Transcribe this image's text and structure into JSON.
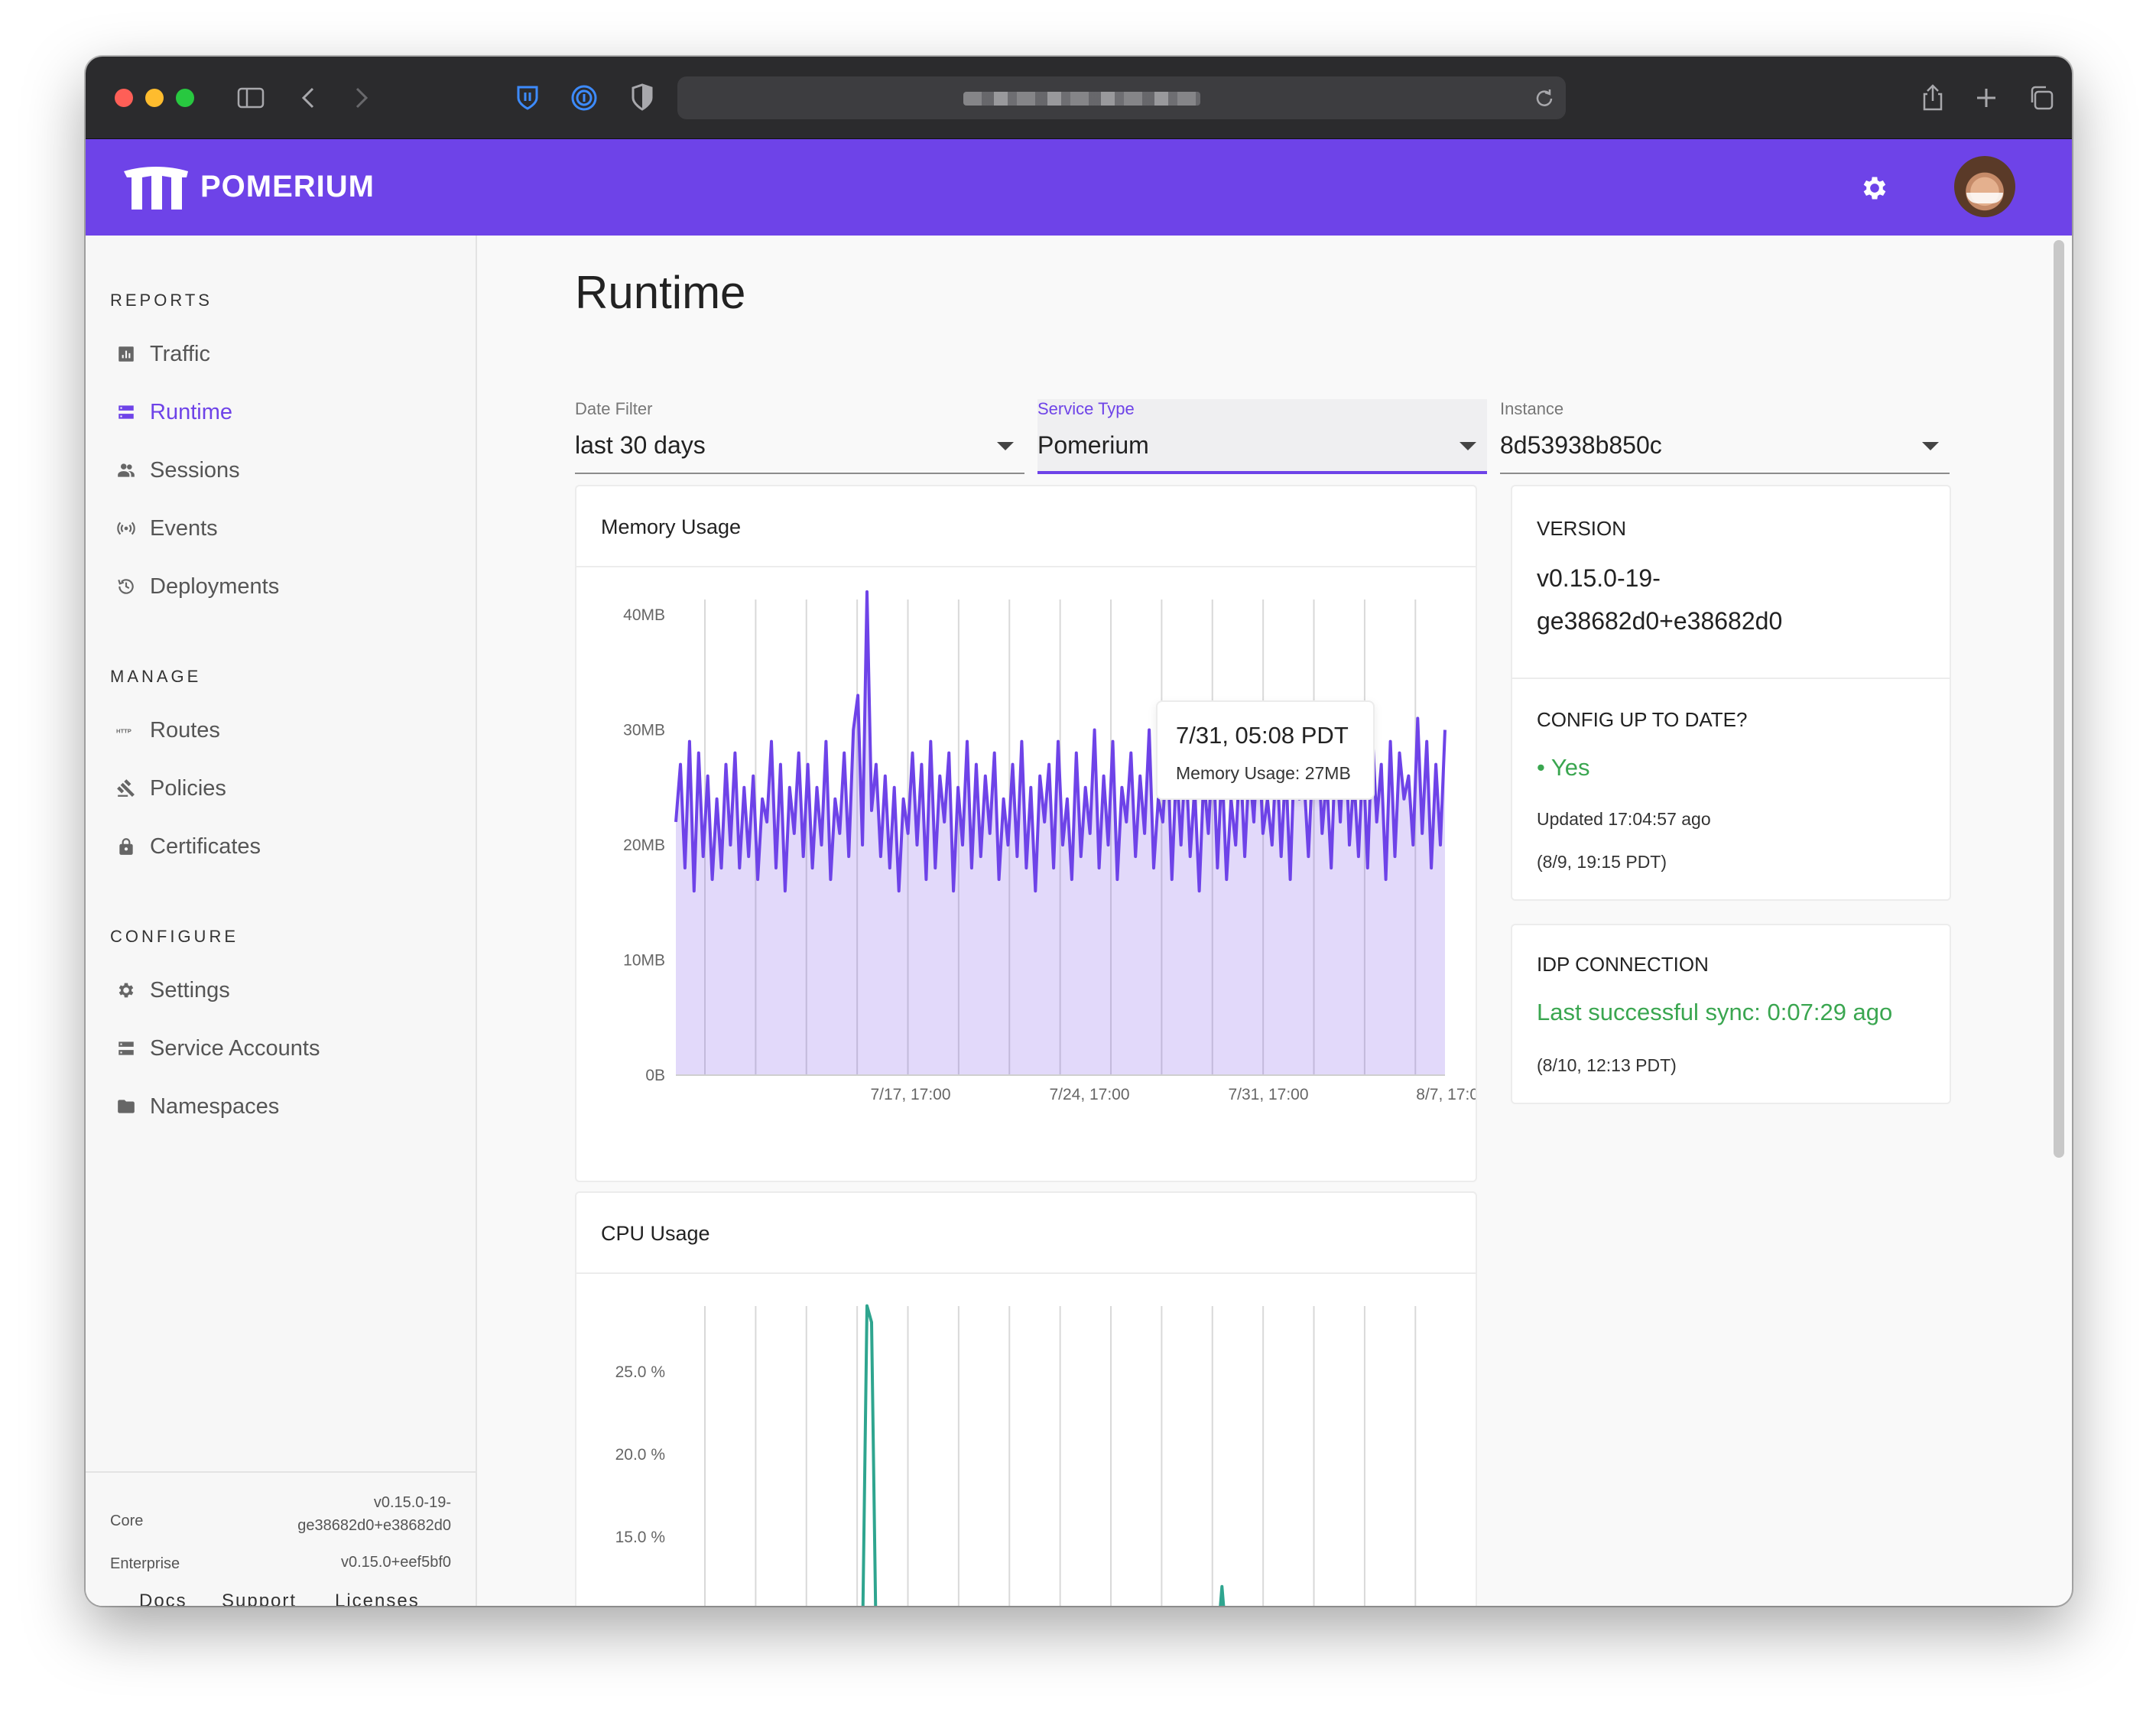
{
  "brand": {
    "name": "POMERIUM",
    "accent": "#6e43e8",
    "green": "#3aa650",
    "cpu_color": "#2fa58f"
  },
  "sidebar": {
    "sections": [
      {
        "title": "REPORTS",
        "items": [
          {
            "label": "Traffic",
            "icon": "bar-chart-icon"
          },
          {
            "label": "Runtime",
            "icon": "storage-icon",
            "active": true
          },
          {
            "label": "Sessions",
            "icon": "people-icon"
          },
          {
            "label": "Events",
            "icon": "broadcast-icon"
          },
          {
            "label": "Deployments",
            "icon": "history-icon"
          }
        ]
      },
      {
        "title": "MANAGE",
        "items": [
          {
            "label": "Routes",
            "icon": "http-icon"
          },
          {
            "label": "Policies",
            "icon": "gavel-icon"
          },
          {
            "label": "Certificates",
            "icon": "lock-icon"
          }
        ]
      },
      {
        "title": "CONFIGURE",
        "items": [
          {
            "label": "Settings",
            "icon": "gear-icon"
          },
          {
            "label": "Service Accounts",
            "icon": "storage-icon"
          },
          {
            "label": "Namespaces",
            "icon": "folder-icon"
          }
        ]
      }
    ],
    "footer": {
      "core_label": "Core",
      "core_version_line1": "v0.15.0-19-",
      "core_version_line2": "ge38682d0+e38682d0",
      "enterprise_label": "Enterprise",
      "enterprise_version": "v0.15.0+eef5bf0",
      "links": [
        "Docs",
        "Support",
        "Licenses"
      ]
    }
  },
  "main": {
    "title": "Runtime",
    "filters": [
      {
        "label": "Date Filter",
        "value": "last 30 days"
      },
      {
        "label": "Service Type",
        "value": "Pomerium",
        "focused": true
      },
      {
        "label": "Instance",
        "value": "8d53938b850c"
      }
    ],
    "memory_card": {
      "title": "Memory Usage"
    },
    "cpu_card": {
      "title": "CPU Usage"
    },
    "tooltip": {
      "title": "7/31, 05:08 PDT",
      "value": "Memory Usage: 27MB"
    },
    "version_card": {
      "label": "VERSION",
      "value_line1": "v0.15.0-19-",
      "value_line2": "ge38682d0+e38682d0"
    },
    "config_card": {
      "label": "CONFIG UP TO DATE?",
      "status": "• Yes",
      "updated": "Updated 17:04:57 ago",
      "timestamp": "(8/9, 19:15 PDT)"
    },
    "idp_card": {
      "label": "IDP CONNECTION",
      "status": "Last successful sync: 0:07:29 ago",
      "timestamp": "(8/10, 12:13 PDT)"
    }
  },
  "chart_data": [
    {
      "type": "area",
      "title": "Memory Usage",
      "y_tick_labels": [
        "0B",
        "10MB",
        "20MB",
        "30MB",
        "40MB"
      ],
      "ylim": [
        0,
        40
      ],
      "y_unit": "MB",
      "x_tick_labels": [
        "7/17, 17:00",
        "7/24, 17:00",
        "7/31, 17:00",
        "8/7, 17:00"
      ],
      "grid": "vertical",
      "series": [
        {
          "values": [
            22,
            27,
            18,
            29,
            16,
            28,
            19,
            26,
            17,
            24,
            18,
            27,
            20,
            28,
            18,
            25,
            19,
            26,
            17,
            24,
            22,
            29,
            18,
            27,
            16,
            25,
            21,
            28,
            19,
            27,
            18,
            25,
            20,
            29,
            17,
            24,
            21,
            28,
            19,
            30,
            33,
            20,
            42,
            23,
            27,
            19,
            26,
            18,
            25,
            16,
            24,
            21,
            28,
            20,
            27,
            17,
            29,
            18,
            26,
            22,
            28,
            16,
            25,
            20,
            29,
            18,
            27,
            19,
            26,
            21,
            28,
            17,
            24,
            20,
            27,
            19,
            29,
            18,
            25,
            16,
            26,
            22,
            27,
            18,
            29,
            20,
            24,
            17,
            28,
            19,
            25,
            21,
            30,
            18,
            26,
            20,
            29,
            17,
            25,
            22,
            28,
            19,
            26,
            21,
            30,
            18,
            24,
            22,
            29,
            17,
            27,
            20,
            28,
            19,
            25,
            16,
            26,
            21,
            29,
            18,
            27,
            17,
            24,
            20,
            28,
            19,
            27,
            22,
            30,
            21,
            24,
            20,
            28,
            19,
            27,
            17,
            29,
            24,
            26,
            19,
            28,
            30,
            21,
            26,
            18,
            29,
            22,
            31,
            20,
            26,
            19,
            28,
            18,
            30,
            22,
            27,
            17,
            29,
            19,
            28,
            24,
            26,
            20,
            31,
            21,
            29,
            18,
            27,
            20,
            30
          ]
        }
      ]
    },
    {
      "type": "line",
      "title": "CPU Usage",
      "y_tick_labels": [
        "15.0 %",
        "20.0 %",
        "25.0 %"
      ],
      "y_unit": "%",
      "grid": "vertical",
      "series": [
        {
          "values": [
            0,
            0,
            0,
            0,
            0,
            0,
            0,
            0,
            0,
            0,
            0,
            0,
            0,
            0,
            0,
            0,
            0,
            0,
            0,
            0,
            0,
            0,
            0,
            0,
            0,
            0,
            0,
            0,
            0,
            0,
            0,
            0,
            0,
            0,
            0,
            0,
            0,
            0,
            0,
            0,
            0,
            0,
            29,
            28,
            0,
            0,
            0,
            0,
            0,
            0,
            0,
            0,
            0,
            0,
            0,
            0,
            0,
            0,
            0,
            0,
            0,
            0,
            0,
            0,
            0,
            0,
            0,
            0,
            0,
            0,
            0,
            0,
            0,
            0,
            0,
            0,
            0,
            0,
            0,
            0,
            0,
            0,
            0,
            0,
            0,
            0,
            0,
            0,
            0,
            0,
            0,
            0,
            0,
            0,
            0,
            0,
            0,
            0,
            0,
            0,
            0,
            0,
            0,
            0,
            0,
            0,
            0,
            0,
            0,
            0,
            0,
            0,
            0,
            0,
            0,
            0,
            0,
            0,
            0,
            0,
            12,
            0,
            0,
            0,
            0,
            0,
            0,
            0,
            0,
            0,
            0,
            0,
            0,
            0,
            0,
            0,
            0,
            0,
            0,
            0,
            0,
            0,
            0,
            0,
            0,
            0,
            0,
            0,
            0,
            0,
            0,
            0,
            0,
            0,
            0,
            0,
            0,
            0,
            0,
            0,
            0,
            0,
            0,
            0,
            0,
            0,
            0,
            0,
            0,
            0
          ]
        }
      ]
    }
  ]
}
